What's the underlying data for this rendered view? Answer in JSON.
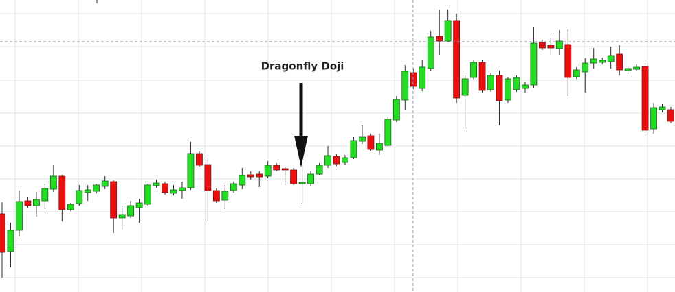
{
  "chart_data": {
    "type": "candlestick",
    "annotation": "Dragonfly Doji",
    "up_color": "#22dd22",
    "down_color": "#e81010",
    "ylim": [
      0,
      426
    ],
    "yticks": [
      406,
      358,
      309,
      261,
      213,
      165,
      117,
      69,
      21
    ],
    "grid": true,
    "open": [
      114,
      59,
      90,
      133,
      126,
      133,
      150,
      169,
      120,
      129,
      145,
      147,
      154,
      161,
      108,
      111,
      123,
      128,
      155,
      158,
      144,
      148,
      152,
      202,
      186,
      148,
      134,
      148,
      156,
      171,
      172,
      169,
      185,
      180,
      178,
      158,
      158,
      172,
      185,
      198,
      189,
      196,
      220,
      228,
      207,
      214,
      251,
      280,
      320,
      297,
      326,
      373,
      366,
      396,
      287,
      313,
      335,
      295,
      316,
      280,
      295,
      297,
      302,
      364,
      360,
      355,
      361,
      314,
      321,
      334,
      335,
      336,
      347,
      323,
      325,
      329,
      238,
      266,
      266
    ],
    "high": [
      131,
      101,
      148,
      138,
      146,
      158,
      186,
      171,
      130,
      156,
      156,
      158,
      169,
      163,
      126,
      133,
      136,
      158,
      164,
      161,
      156,
      161,
      219,
      205,
      196,
      151,
      156,
      161,
      181,
      176,
      176,
      191,
      188,
      182,
      181,
      186,
      177,
      188,
      213,
      201,
      200,
      226,
      243,
      231,
      231,
      256,
      286,
      331,
      326,
      338,
      381,
      412,
      412,
      406,
      316,
      338,
      338,
      320,
      323,
      314,
      316,
      306,
      386,
      368,
      371,
      382,
      383,
      328,
      341,
      356,
      342,
      358,
      360,
      330,
      332,
      334,
      276,
      274,
      270
    ],
    "low": [
      21,
      36,
      81,
      123,
      110,
      121,
      146,
      103,
      118,
      126,
      133,
      144,
      150,
      86,
      92,
      108,
      101,
      126,
      152,
      142,
      141,
      136,
      149,
      183,
      103,
      130,
      121,
      145,
      150,
      164,
      153,
      166,
      176,
      156,
      156,
      129,
      154,
      170,
      181,
      184,
      186,
      194,
      216,
      206,
      200,
      212,
      248,
      266,
      296,
      293,
      322,
      346,
      364,
      276,
      238,
      310,
      291,
      292,
      243,
      276,
      292,
      291,
      298,
      353,
      346,
      346,
      286,
      311,
      291,
      326,
      332,
      326,
      316,
      318,
      322,
      228,
      231,
      262,
      246
    ],
    "close": [
      58,
      90,
      132,
      126,
      135,
      151,
      169,
      120,
      128,
      148,
      149,
      156,
      162,
      108,
      113,
      126,
      130,
      156,
      159,
      145,
      149,
      152,
      202,
      185,
      148,
      133,
      147,
      158,
      170,
      168,
      168,
      185,
      178,
      178,
      158,
      160,
      172,
      185,
      199,
      187,
      196,
      221,
      226,
      208,
      217,
      252,
      281,
      322,
      300,
      328,
      372,
      366,
      396,
      283,
      311,
      335,
      294,
      316,
      279,
      311,
      313,
      302,
      363,
      356,
      356,
      366,
      313,
      324,
      334,
      340,
      338,
      345,
      324,
      326,
      328,
      236,
      269,
      270,
      249
    ]
  }
}
